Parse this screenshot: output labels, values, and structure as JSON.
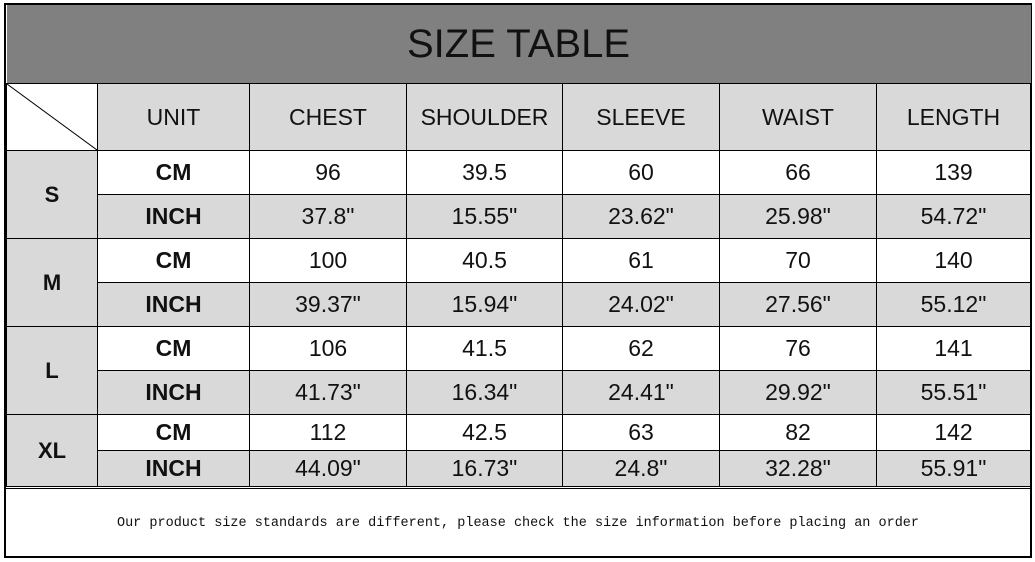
{
  "title": "SIZE TABLE",
  "columns": [
    "UNIT",
    "CHEST",
    "SHOULDER",
    "SLEEVE",
    "WAIST",
    "LENGTH"
  ],
  "sizes": [
    {
      "size": "S",
      "rows": [
        {
          "unit": "CM",
          "values": [
            "96",
            "39.5",
            "60",
            "66",
            "139"
          ]
        },
        {
          "unit": "INCH",
          "values": [
            "37.8\"",
            "15.55\"",
            "23.62\"",
            "25.98\"",
            "54.72\""
          ]
        }
      ]
    },
    {
      "size": "M",
      "rows": [
        {
          "unit": "CM",
          "values": [
            "100",
            "40.5",
            "61",
            "70",
            "140"
          ]
        },
        {
          "unit": "INCH",
          "values": [
            "39.37\"",
            "15.94\"",
            "24.02\"",
            "27.56\"",
            "55.12\""
          ]
        }
      ]
    },
    {
      "size": "L",
      "rows": [
        {
          "unit": "CM",
          "values": [
            "106",
            "41.5",
            "62",
            "76",
            "141"
          ]
        },
        {
          "unit": "INCH",
          "values": [
            "41.73\"",
            "16.34\"",
            "24.41\"",
            "29.92\"",
            "55.51\""
          ]
        }
      ]
    },
    {
      "size": "XL",
      "rows": [
        {
          "unit": "CM",
          "values": [
            "112",
            "42.5",
            "63",
            "82",
            "142"
          ]
        },
        {
          "unit": "INCH",
          "values": [
            "44.09\"",
            "16.73\"",
            "24.8\"",
            "32.28\"",
            "55.91\""
          ]
        }
      ]
    }
  ],
  "note": "Our product size standards are different, please check the size information before placing an order",
  "colors": {
    "title_bg": "#808080",
    "cell_gray": "#d9d9d9"
  }
}
